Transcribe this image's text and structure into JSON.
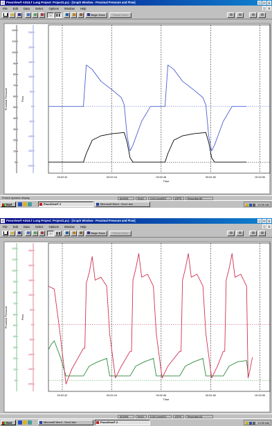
{
  "windows": [
    {
      "title": "PneuView® ADULT Lung Project: Project1.pvj - [Graph Window - Proximal Pressure and Flow]",
      "menu": [
        "File",
        "Edit",
        "Data",
        "Select",
        "Options",
        "Window",
        "Help"
      ],
      "toolbar": {
        "begin_save_label": "Begin Save",
        "disabled_label": "Pause Save"
      },
      "chart_data": {
        "type": "line",
        "axes": [
          {
            "label": "Proximal Pressure",
            "ticks": [
              "0",
              "10",
              "20",
              "30",
              "40",
              "50",
              "60",
              "70",
              "80",
              "90",
              "100",
              "110",
              "120"
            ],
            "color": "#000000",
            "range": [
              -10,
              125
            ]
          },
          {
            "label": "Flow",
            "ticks": [
              "-200",
              "-150",
              "-100",
              "-50",
              "0",
              "50",
              "100",
              "150",
              "200",
              "250"
            ],
            "color": "#4a5fd0",
            "range": [
              -225,
              275
            ]
          }
        ],
        "xlabel": "Time",
        "xticks": [
          "00:02:42",
          "00:02:44",
          "00:02:46",
          "00:02:48",
          "00:02:50"
        ],
        "series": [
          {
            "axis": 0,
            "color": "#000000",
            "points": [
              [
                0,
                0
              ],
              [
                12,
                0
              ],
              [
                13,
                8
              ],
              [
                15,
                20
              ],
              [
                18,
                24
              ],
              [
                22,
                26
              ],
              [
                26,
                27
              ],
              [
                27,
                18
              ],
              [
                28,
                4
              ],
              [
                29,
                0
              ],
              [
                40,
                0
              ],
              [
                41,
                8
              ],
              [
                43,
                20
              ],
              [
                46,
                24
              ],
              [
                50,
                26
              ],
              [
                54,
                27
              ],
              [
                55,
                18
              ],
              [
                56,
                4
              ],
              [
                57,
                0
              ],
              [
                68,
                0
              ]
            ]
          },
          {
            "axis": 1,
            "color": "#4a5fd0",
            "points": [
              [
                0,
                0
              ],
              [
                12,
                0
              ],
              [
                13,
                140
              ],
              [
                15,
                125
              ],
              [
                18,
                85
              ],
              [
                22,
                55
              ],
              [
                25,
                30
              ],
              [
                26,
                5
              ],
              [
                27,
                -100
              ],
              [
                28,
                -150
              ],
              [
                29,
                -130
              ],
              [
                32,
                -50
              ],
              [
                35,
                0
              ],
              [
                40,
                0
              ],
              [
                41,
                140
              ],
              [
                43,
                125
              ],
              [
                46,
                85
              ],
              [
                50,
                55
              ],
              [
                53,
                30
              ],
              [
                54,
                5
              ],
              [
                55,
                -100
              ],
              [
                56,
                -150
              ],
              [
                57,
                -130
              ],
              [
                60,
                -50
              ],
              [
                63,
                0
              ],
              [
                68,
                0
              ]
            ]
          }
        ]
      },
      "status": {
        "left": "Freeze dynamic display",
        "panels": [
          "A01994",
          "Rp20",
          "0.04 L/cmH2O",
          "ATPS",
          "Recording 60"
        ]
      },
      "taskbar": {
        "start": "Start",
        "items": [
          {
            "label": "PneuView® 2",
            "active": true
          },
          {
            "label": "Microsoft Word - Doc1.doc",
            "active": false
          }
        ],
        "clock": "10:50 AM"
      }
    },
    {
      "title": "PneuView® ADULT Lung Project: Project1.pvj - [Graph Window - Proximal Pressure and Flow]",
      "menu": [
        "File",
        "Edit",
        "Data",
        "Select",
        "Options",
        "Window",
        "Help"
      ],
      "toolbar": {
        "begin_save_label": "Begin Save",
        "disabled_label": "Pause Save"
      },
      "chart_data": {
        "type": "line",
        "axes": [
          {
            "label": "Proximal Pressure",
            "ticks": [
              "0",
              "10",
              "20",
              "30",
              "40",
              "50",
              "60",
              "70",
              "80",
              "90",
              "100",
              "110",
              "120"
            ],
            "color": "#2a9a3a",
            "range": [
              -10,
              125
            ]
          },
          {
            "label": "Flow",
            "ticks": [
              "-200",
              "-150",
              "-100",
              "-50",
              "0",
              "50",
              "100",
              "150",
              "200",
              "250"
            ],
            "color": "#d03050",
            "range": [
              -225,
              275
            ]
          }
        ],
        "xlabel": "Time",
        "xticks": [
          "00:02:42",
          "00:02:44",
          "00:02:46",
          "00:02:48",
          "00:02:50"
        ],
        "series": [
          {
            "axis": 0,
            "color": "#2a8a3a",
            "points": [
              [
                0,
                28
              ],
              [
                1,
                33
              ],
              [
                2,
                36
              ],
              [
                4,
                22
              ],
              [
                6,
                4
              ],
              [
                12,
                4
              ],
              [
                14,
                13
              ],
              [
                17,
                17
              ],
              [
                20,
                20
              ],
              [
                21,
                4
              ],
              [
                28,
                4
              ],
              [
                30,
                13
              ],
              [
                33,
                17
              ],
              [
                36,
                20
              ],
              [
                37,
                4
              ],
              [
                45,
                4
              ],
              [
                47,
                13
              ],
              [
                50,
                17
              ],
              [
                53,
                20
              ],
              [
                54,
                4
              ],
              [
                60,
                4
              ],
              [
                62,
                13
              ],
              [
                65,
                17
              ],
              [
                68,
                18
              ],
              [
                68.6,
                4
              ]
            ]
          },
          {
            "axis": 1,
            "color": "#d03050",
            "points": [
              [
                0,
                130
              ],
              [
                2,
                120
              ],
              [
                4,
                -30
              ],
              [
                6,
                -200
              ],
              [
                8,
                -150
              ],
              [
                12,
                -80
              ],
              [
                12.5,
                -80
              ],
              [
                13,
                140
              ],
              [
                14,
                175
              ],
              [
                15,
                230
              ],
              [
                16,
                150
              ],
              [
                18,
                160
              ],
              [
                20,
                130
              ],
              [
                21,
                -30
              ],
              [
                23,
                -180
              ],
              [
                25,
                -140
              ],
              [
                28,
                -90
              ],
              [
                28.5,
                -90
              ],
              [
                29,
                150
              ],
              [
                30,
                190
              ],
              [
                31,
                240
              ],
              [
                32,
                160
              ],
              [
                34,
                170
              ],
              [
                36,
                130
              ],
              [
                37,
                -30
              ],
              [
                39,
                -180
              ],
              [
                41,
                -140
              ],
              [
                45,
                -90
              ],
              [
                45.5,
                -90
              ],
              [
                46,
                150
              ],
              [
                47,
                190
              ],
              [
                48,
                240
              ],
              [
                49,
                160
              ],
              [
                51,
                170
              ],
              [
                53,
                130
              ],
              [
                54,
                -30
              ],
              [
                56,
                -180
              ],
              [
                58,
                -140
              ],
              [
                60,
                -90
              ],
              [
                60.5,
                -90
              ],
              [
                61,
                150
              ],
              [
                62,
                190
              ],
              [
                63,
                240
              ],
              [
                64,
                160
              ],
              [
                66,
                170
              ],
              [
                68,
                130
              ],
              [
                68.5,
                -180
              ],
              [
                69,
                -160
              ],
              [
                70,
                -110
              ]
            ]
          }
        ]
      },
      "status": {
        "left": "",
        "panels": [
          "A01994",
          "Rp20",
          "0.05 L/cmH2O",
          "ATPS",
          "Recording 64"
        ]
      },
      "taskbar": {
        "start": "Start",
        "items": [
          {
            "label": "Microsoft Word - Doc2.doc",
            "active": false
          },
          {
            "label": "PneuView® 2",
            "active": true
          }
        ],
        "clock": "10:59 AM"
      }
    }
  ]
}
